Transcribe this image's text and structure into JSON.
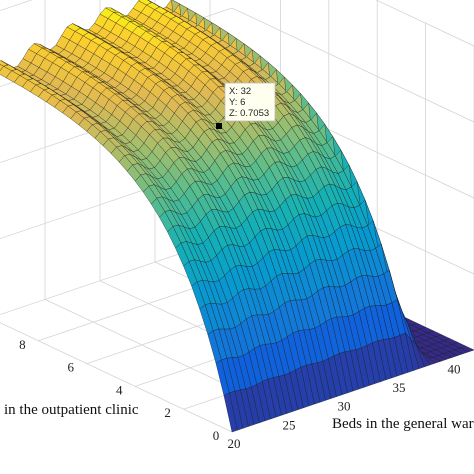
{
  "chart_data": {
    "type": "surface",
    "x_axis": {
      "label": "Beds in the general war",
      "ticks": [
        20,
        25,
        30,
        35,
        40
      ],
      "range": [
        20,
        42
      ]
    },
    "y_axis": {
      "label": "in the outpatient clinic",
      "ticks": [
        0,
        2,
        4,
        6,
        8
      ],
      "range": [
        0,
        10
      ]
    },
    "z_axis": {
      "range": [
        0,
        0.75
      ]
    },
    "grid": true,
    "colormap": "parula",
    "surface_shape": {
      "description": "ridge rising from low at y=0 to a plateau near 0.70 for larger y, with drop-off for x beyond about 37",
      "peak": {
        "x": 32,
        "y": 6,
        "z": 0.7053
      }
    },
    "datatip": {
      "x_label": "X: 32",
      "y_label": "Y: 6",
      "z_label": "Z: 0.7053"
    }
  },
  "colors": {
    "grid": "#d4d4d4",
    "mesh": "#1a1a1a",
    "marker": "#000000",
    "tip_bg": "#fffff0"
  }
}
